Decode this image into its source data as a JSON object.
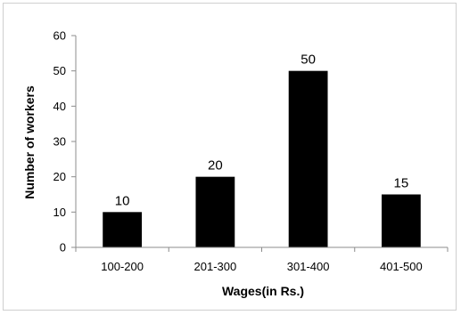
{
  "chart_data": {
    "type": "bar",
    "categories": [
      "100-200",
      "201-300",
      "301-400",
      "401-500"
    ],
    "values": [
      10,
      20,
      50,
      15
    ],
    "xlabel": "Wages(in Rs.)",
    "ylabel": "Number of workers",
    "ylim": [
      0,
      60
    ],
    "yticks": [
      0,
      10,
      20,
      30,
      40,
      50,
      60
    ],
    "data_labels": true,
    "grid": false,
    "legend": "none",
    "bar_color": "#000000"
  }
}
